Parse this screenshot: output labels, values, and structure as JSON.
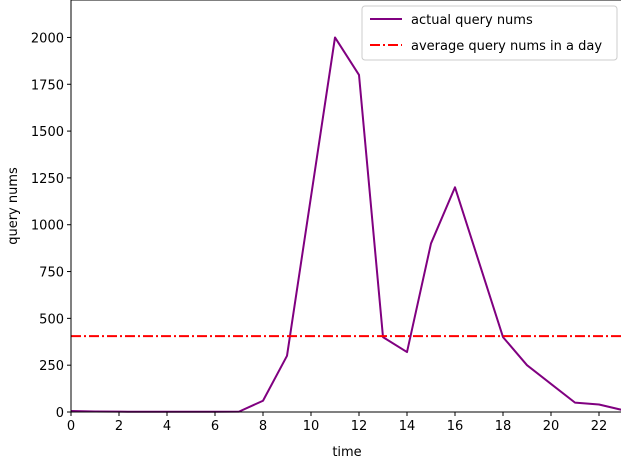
{
  "chart_data": {
    "type": "line",
    "title": "",
    "xlabel": "time",
    "ylabel": "query nums",
    "xlim": [
      0,
      23
    ],
    "ylim": [
      0,
      2200
    ],
    "x_ticks": [
      0,
      2,
      4,
      6,
      8,
      10,
      12,
      14,
      16,
      18,
      20,
      22
    ],
    "y_ticks": [
      0,
      250,
      500,
      750,
      1000,
      1250,
      1500,
      1750,
      2000
    ],
    "grid": false,
    "legend_position": "top-right",
    "series": [
      {
        "name": "actual query nums",
        "color": "#800080",
        "style": "solid",
        "x": [
          0,
          1,
          2,
          3,
          4,
          5,
          6,
          7,
          8,
          9,
          10,
          11,
          12,
          13,
          14,
          15,
          16,
          17,
          18,
          19,
          20,
          21,
          22,
          23
        ],
        "y": [
          5,
          3,
          2,
          1,
          1,
          1,
          1,
          2,
          60,
          300,
          1150,
          2000,
          1800,
          400,
          320,
          900,
          1200,
          800,
          400,
          250,
          150,
          50,
          40,
          10
        ]
      },
      {
        "name": "average query nums in a day",
        "color": "#ff0000",
        "style": "dash-dot",
        "x": [
          0,
          23
        ],
        "y": [
          405,
          405
        ]
      }
    ]
  }
}
